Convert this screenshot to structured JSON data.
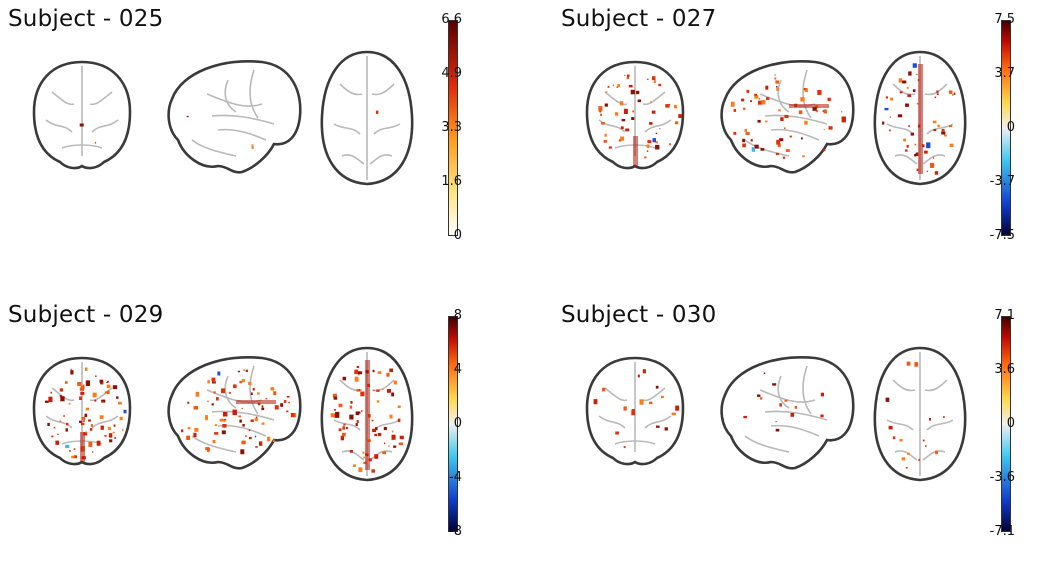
{
  "panels": [
    {
      "title": "Subject - 025",
      "ticks": [
        "6.6",
        "4.9",
        "3.3",
        "1.6",
        "0"
      ],
      "scale": "positive",
      "density": 6,
      "mode": "sparse"
    },
    {
      "title": "Subject - 027",
      "ticks": [
        "7.5",
        "3.7",
        "0",
        "-3.7",
        "-7.5"
      ],
      "scale": "diverging",
      "density": 170,
      "mode": "dense"
    },
    {
      "title": "Subject - 029",
      "ticks": [
        "8",
        "4",
        "0",
        "-4",
        "-8"
      ],
      "scale": "diverging",
      "density": 230,
      "mode": "dense"
    },
    {
      "title": "Subject - 030",
      "ticks": [
        "7.1",
        "3.6",
        "0",
        "-3.6",
        "-7.1"
      ],
      "scale": "diverging",
      "density": 45,
      "mode": "mid"
    }
  ],
  "colors": {
    "activation": [
      "#e0300a",
      "#f05a14",
      "#cc1f08",
      "#ff7a1a",
      "#8c1005"
    ],
    "negative": [
      "#1d4fd6",
      "#3fb8e8"
    ],
    "outline": "#3a3a3a",
    "sulci": "#b9b9b9",
    "positive_scale": "linear-gradient(to top,#ffffff 0%,#ffe680 20%,#ff9a1a 45%,#e02a0a 70%,#5a0000 100%)",
    "diverging_scale": "linear-gradient(to top,#00003a 0%,#1040d0 15%,#40c8f0 35%,#f0f0f0 50%,#ffd84a 62%,#ff6a10 78%,#c40a00 90%,#400000 100%)"
  }
}
